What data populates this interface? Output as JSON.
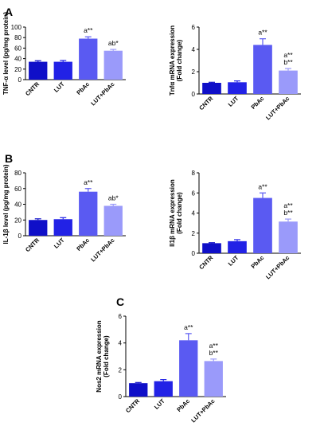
{
  "panel_letters": [
    "A",
    "B",
    "C"
  ],
  "colors": {
    "CNTR": "#0f0fc8",
    "LUT": "#2222e6",
    "PbAc": "#5a5af2",
    "LUT+PbAc": "#9a9afa",
    "axis": "#000000"
  },
  "chart_data": [
    {
      "type": "bar",
      "panel": "A",
      "categories": [
        "CNTR",
        "LUT",
        "PbAc",
        "LUT+PbAc"
      ],
      "values": [
        34,
        34,
        78,
        55
      ],
      "errors": [
        2,
        2.5,
        3.5,
        2.5
      ],
      "ylabel_lines": [
        "TNF-α level (pg/mg protein)"
      ],
      "ylim": [
        0,
        100
      ],
      "yticks": [
        0,
        20,
        40,
        60,
        80,
        100
      ],
      "annotations": [
        [],
        [],
        [
          "a**"
        ],
        [
          "ab*"
        ]
      ]
    },
    {
      "type": "bar",
      "panel": "A",
      "categories": [
        "CNTR",
        "LUT",
        "PbAc",
        "LUT+PbAc"
      ],
      "values": [
        1.0,
        1.05,
        4.4,
        2.1
      ],
      "errors": [
        0.05,
        0.12,
        0.55,
        0.18
      ],
      "ylabel_lines": [
        "Tnfα mRNA expression",
        "(Fold change)"
      ],
      "ylim": [
        0,
        6
      ],
      "yticks": [
        0,
        2,
        4,
        6
      ],
      "annotations": [
        [],
        [],
        [
          "a**"
        ],
        [
          "a**",
          "b**"
        ]
      ]
    },
    {
      "type": "bar",
      "panel": "B",
      "categories": [
        "CNTR",
        "LUT",
        "PbAc",
        "LUT+PbAc"
      ],
      "values": [
        20,
        21,
        56,
        38
      ],
      "errors": [
        1.5,
        2,
        4,
        2
      ],
      "ylabel_lines": [
        "IL-1β level (pg/mg protein)"
      ],
      "ylim": [
        0,
        80
      ],
      "yticks": [
        0,
        20,
        40,
        60,
        80
      ],
      "annotations": [
        [],
        [],
        [
          "a**"
        ],
        [
          "ab*"
        ]
      ]
    },
    {
      "type": "bar",
      "panel": "B",
      "categories": [
        "CNTR",
        "LUT",
        "PbAc",
        "LUT+PbAc"
      ],
      "values": [
        1.0,
        1.2,
        5.5,
        3.15
      ],
      "errors": [
        0.05,
        0.15,
        0.5,
        0.25
      ],
      "ylabel_lines": [
        "Il1β mRNA expression",
        "(Fold change)"
      ],
      "ylim": [
        0,
        8
      ],
      "yticks": [
        0,
        2,
        4,
        6,
        8
      ],
      "annotations": [
        [],
        [],
        [
          "a**"
        ],
        [
          "a**",
          "b**"
        ]
      ]
    },
    {
      "type": "bar",
      "panel": "C",
      "categories": [
        "CNTR",
        "LUT",
        "PbAc",
        "LUT+PbAc"
      ],
      "values": [
        1.0,
        1.15,
        4.2,
        2.65
      ],
      "errors": [
        0.05,
        0.12,
        0.5,
        0.15
      ],
      "ylabel_lines": [
        "Nos2 mRNA expression",
        "(Fold change)"
      ],
      "ylim": [
        0,
        6
      ],
      "yticks": [
        0,
        2,
        4,
        6
      ],
      "annotations": [
        [],
        [],
        [
          "a**"
        ],
        [
          "a**",
          "b**"
        ]
      ]
    }
  ]
}
